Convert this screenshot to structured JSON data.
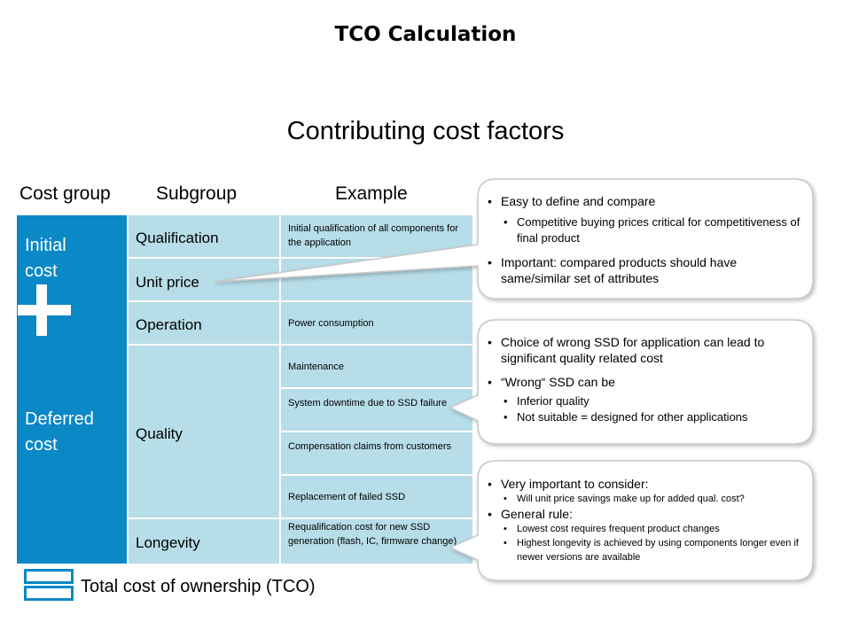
{
  "title": "TCO Calculation",
  "subtitle": "Contributing cost factors",
  "headers": {
    "cost_group": "Cost group",
    "subgroup": "Subgroup",
    "example": "Example"
  },
  "groups": {
    "initial": [
      "Initial",
      "cost"
    ],
    "deferred": [
      "Deferred",
      "cost"
    ]
  },
  "subgroups": {
    "qualification": "Qualification",
    "unit_price": "Unit price",
    "operation": "Operation",
    "quality": "Quality",
    "longevity": "Longevity"
  },
  "examples": {
    "qualification": "Initial qualification of all components for the application",
    "unit_price": "",
    "operation": "Power consumption",
    "maintenance": "Maintenance",
    "downtime": "System downtime due to SSD failure",
    "compensation": "Compensation claims from customers",
    "replacement": "Replacement  of failed SSD",
    "requalification": "Requalification  cost for new SSD generation (flash, IC, firmware change)"
  },
  "callouts": [
    {
      "b1": "Easy to define and compare",
      "b2": "Competitive buying prices critical for competitiveness of final product",
      "b1b": "Important:  compared products should have same/similar set of attributes"
    },
    {
      "b1": "Choice of wrong SSD for application can lead to significant quality related cost",
      "b1b": "“Wrong“  SSD can be",
      "b2a": "Inferior quality",
      "b2b": "Not suitable = designed for other applications"
    },
    {
      "b1": "Very important to consider:",
      "b3a": "Will unit price savings make up for added qual. cost?",
      "b1b": "General rule:",
      "b3b": "Lowest cost requires frequent   product changes",
      "b3c": "Highest longevity is achieved  by using components longer even  if newer versions  are available"
    }
  ],
  "legend": "Total cost of ownership (TCO)",
  "colors": {
    "accent": "#0b88c6",
    "cell": "#b7dde8",
    "callout_border": "#c8c8c8"
  }
}
